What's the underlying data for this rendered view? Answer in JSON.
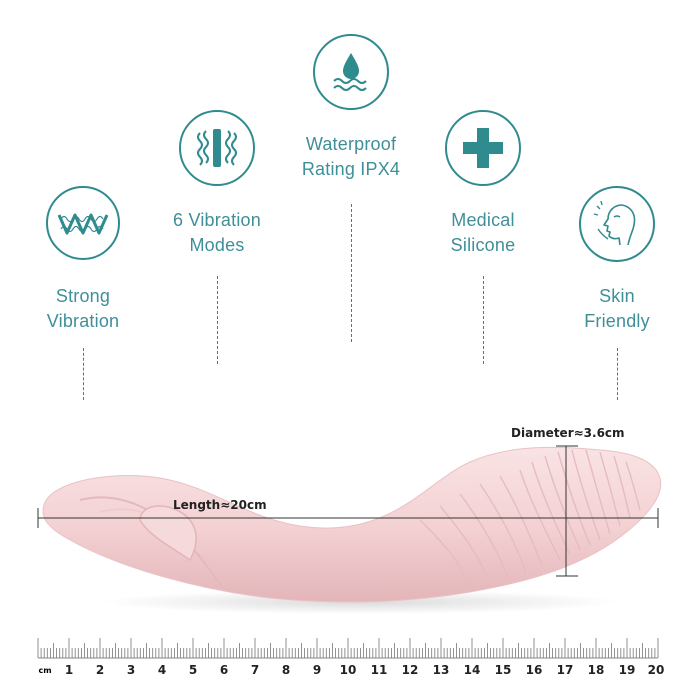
{
  "features": [
    {
      "id": "strong-vibration",
      "label": "Strong\nVibration",
      "icon": "wave-zigzag-icon"
    },
    {
      "id": "vibration-modes",
      "label": "6 Vibration\nModes",
      "icon": "vibration-bars-icon"
    },
    {
      "id": "waterproof",
      "label": "Waterproof\nRating IPX4",
      "icon": "water-drop-icon"
    },
    {
      "id": "medical-silicone",
      "label": "Medical\nSilicone",
      "icon": "medical-cross-icon"
    },
    {
      "id": "skin-friendly",
      "label": "Skin\nFriendly",
      "icon": "face-profile-icon"
    }
  ],
  "measurements": {
    "length": "Length≈20cm",
    "diameter": "Diameter≈3.6cm"
  },
  "ruler": {
    "unit": "cm",
    "numbers": [
      "1",
      "2",
      "3",
      "4",
      "5",
      "6",
      "7",
      "8",
      "9",
      "10",
      "11",
      "12",
      "13",
      "14",
      "15",
      "16",
      "17",
      "18",
      "19",
      "20"
    ]
  },
  "colors": {
    "accent": "#2f8b8e",
    "label": "#3f8f98",
    "dash": "#6a64b0",
    "product": "#f6d7d8"
  }
}
